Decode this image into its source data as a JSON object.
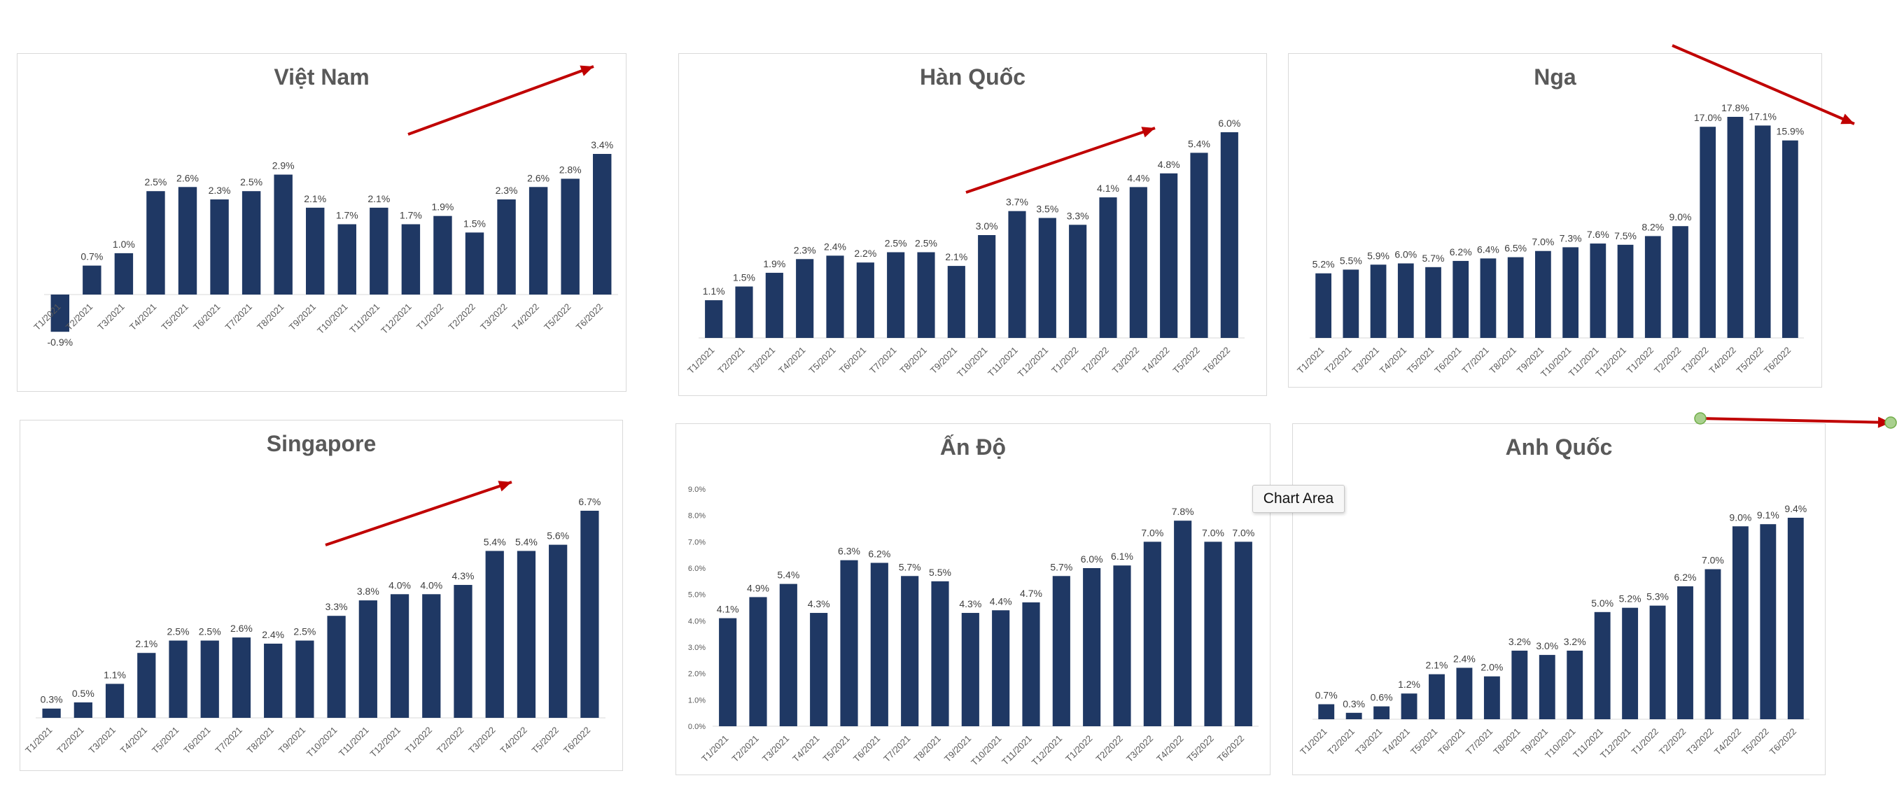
{
  "colors": {
    "bar": "#1f3864",
    "arrow": "#c00000",
    "handle": "#a9d08e"
  },
  "tooltip": {
    "text": "Chart Area"
  },
  "chart_data": [
    {
      "type": "bar",
      "title": "Việt Nam",
      "categories": [
        "T1/2021",
        "T2/2021",
        "T3/2021",
        "T4/2021",
        "T5/2021",
        "T6/2021",
        "T7/2021",
        "T8/2021",
        "T9/2021",
        "T10/2021",
        "T11/2021",
        "T12/2021",
        "T1/2022",
        "T2/2022",
        "T3/2022",
        "T4/2022",
        "T5/2022",
        "T6/2022"
      ],
      "values": [
        -0.9,
        0.7,
        1.0,
        2.5,
        2.6,
        2.3,
        2.5,
        2.9,
        2.1,
        1.7,
        2.1,
        1.7,
        1.9,
        1.5,
        2.3,
        2.6,
        2.8,
        3.4
      ],
      "labels": [
        "-0.9%",
        "0.7%",
        "1.0%",
        "2.5%",
        "2.6%",
        "2.3%",
        "2.5%",
        "2.9%",
        "2.1%",
        "1.7%",
        "2.1%",
        "1.7%",
        "1.9%",
        "1.5%",
        "2.3%",
        "2.6%",
        "2.8%",
        "3.4%"
      ],
      "trend": "up",
      "grid": false
    },
    {
      "type": "bar",
      "title": "Hàn Quốc",
      "categories": [
        "T1/2021",
        "T2/2021",
        "T3/2021",
        "T4/2021",
        "T5/2021",
        "T6/2021",
        "T7/2021",
        "T8/2021",
        "T9/2021",
        "T10/2021",
        "T11/2021",
        "T12/2021",
        "T1/2022",
        "T2/2022",
        "T3/2022",
        "T4/2022",
        "T5/2022",
        "T6/2022"
      ],
      "values": [
        1.1,
        1.5,
        1.9,
        2.3,
        2.4,
        2.2,
        2.5,
        2.5,
        2.1,
        3.0,
        3.7,
        3.5,
        3.3,
        4.1,
        4.4,
        4.8,
        5.4,
        6.0
      ],
      "labels": [
        "1.1%",
        "1.5%",
        "1.9%",
        "2.3%",
        "2.4%",
        "2.2%",
        "2.5%",
        "2.5%",
        "2.1%",
        "3.0%",
        "3.7%",
        "3.5%",
        "3.3%",
        "4.1%",
        "4.4%",
        "4.8%",
        "5.4%",
        "6.0%"
      ],
      "trend": "up",
      "grid": false
    },
    {
      "type": "bar",
      "title": "Nga",
      "categories": [
        "T1/2021",
        "T2/2021",
        "T3/2021",
        "T4/2021",
        "T5/2021",
        "T6/2021",
        "T7/2021",
        "T8/2021",
        "T9/2021",
        "T10/2021",
        "T11/2021",
        "T12/2021",
        "T1/2022",
        "T2/2022",
        "T3/2022",
        "T4/2022",
        "T5/2022",
        "T6/2022"
      ],
      "values": [
        5.2,
        5.5,
        5.9,
        6.0,
        5.7,
        6.2,
        6.4,
        6.5,
        7.0,
        7.3,
        7.6,
        7.5,
        8.2,
        9.0,
        17.0,
        17.8,
        17.1,
        15.9
      ],
      "labels": [
        "5.2%",
        "5.5%",
        "5.9%",
        "6.0%",
        "5.7%",
        "6.2%",
        "6.4%",
        "6.5%",
        "7.0%",
        "7.3%",
        "7.6%",
        "7.5%",
        "8.2%",
        "9.0%",
        "17.0%",
        "17.8%",
        "17.1%",
        "15.9%"
      ],
      "trend": "down",
      "grid": false
    },
    {
      "type": "bar",
      "title": "Singapore",
      "categories": [
        "T1/2021",
        "T2/2021",
        "T3/2021",
        "T4/2021",
        "T5/2021",
        "T6/2021",
        "T7/2021",
        "T8/2021",
        "T9/2021",
        "T10/2021",
        "T11/2021",
        "T12/2021",
        "T1/2022",
        "T2/2022",
        "T3/2022",
        "T4/2022",
        "T5/2022",
        "T6/2022"
      ],
      "values": [
        0.3,
        0.5,
        1.1,
        2.1,
        2.5,
        2.5,
        2.6,
        2.4,
        2.5,
        3.3,
        3.8,
        4.0,
        4.0,
        4.3,
        5.4,
        5.4,
        5.6,
        6.7
      ],
      "labels": [
        "0.3%",
        "0.5%",
        "1.1%",
        "2.1%",
        "2.5%",
        "2.5%",
        "2.6%",
        "2.4%",
        "2.5%",
        "3.3%",
        "3.8%",
        "4.0%",
        "4.0%",
        "4.3%",
        "5.4%",
        "5.4%",
        "5.6%",
        "6.7%"
      ],
      "trend": "up",
      "grid": false
    },
    {
      "type": "bar",
      "title": "Ấn Độ",
      "categories": [
        "T1/2021",
        "T2/2021",
        "T3/2021",
        "T4/2021",
        "T5/2021",
        "T6/2021",
        "T7/2021",
        "T8/2021",
        "T9/2021",
        "T10/2021",
        "T11/2021",
        "T12/2021",
        "T1/2022",
        "T2/2022",
        "T3/2022",
        "T4/2022",
        "T5/2022",
        "T6/2022"
      ],
      "values": [
        4.1,
        4.9,
        5.4,
        4.3,
        6.3,
        6.2,
        5.7,
        5.5,
        4.3,
        4.4,
        4.7,
        5.7,
        6.0,
        6.1,
        7.0,
        7.8,
        7.0,
        7.0
      ],
      "labels": [
        "4.1%",
        "4.9%",
        "5.4%",
        "4.3%",
        "6.3%",
        "6.2%",
        "5.7%",
        "5.5%",
        "4.3%",
        "4.4%",
        "4.7%",
        "5.7%",
        "6.0%",
        "6.1%",
        "7.0%",
        "7.8%",
        "7.0%",
        "7.0%"
      ],
      "yticks": [
        "0.0%",
        "1.0%",
        "2.0%",
        "3.0%",
        "4.0%",
        "5.0%",
        "6.0%",
        "7.0%",
        "8.0%",
        "9.0%"
      ],
      "ylim": [
        0,
        9
      ],
      "grid": false
    },
    {
      "type": "bar",
      "title": "Anh Quốc",
      "categories": [
        "T1/2021",
        "T2/2021",
        "T3/2021",
        "T4/2021",
        "T5/2021",
        "T6/2021",
        "T7/2021",
        "T8/2021",
        "T9/2021",
        "T10/2021",
        "T11/2021",
        "T12/2021",
        "T1/2022",
        "T2/2022",
        "T3/2022",
        "T4/2022",
        "T5/2022",
        "T6/2022"
      ],
      "values": [
        0.7,
        0.3,
        0.6,
        1.2,
        2.1,
        2.4,
        2.0,
        3.2,
        3.0,
        3.2,
        5.0,
        5.2,
        5.3,
        6.2,
        7.0,
        9.0,
        9.1,
        9.4
      ],
      "labels": [
        "0.7%",
        "0.3%",
        "0.6%",
        "1.2%",
        "2.1%",
        "2.4%",
        "2.0%",
        "3.2%",
        "3.0%",
        "3.2%",
        "5.0%",
        "5.2%",
        "5.3%",
        "6.2%",
        "7.0%",
        "9.0%",
        "9.1%",
        "9.4%"
      ],
      "trend": "flat-down",
      "grid": false
    }
  ]
}
